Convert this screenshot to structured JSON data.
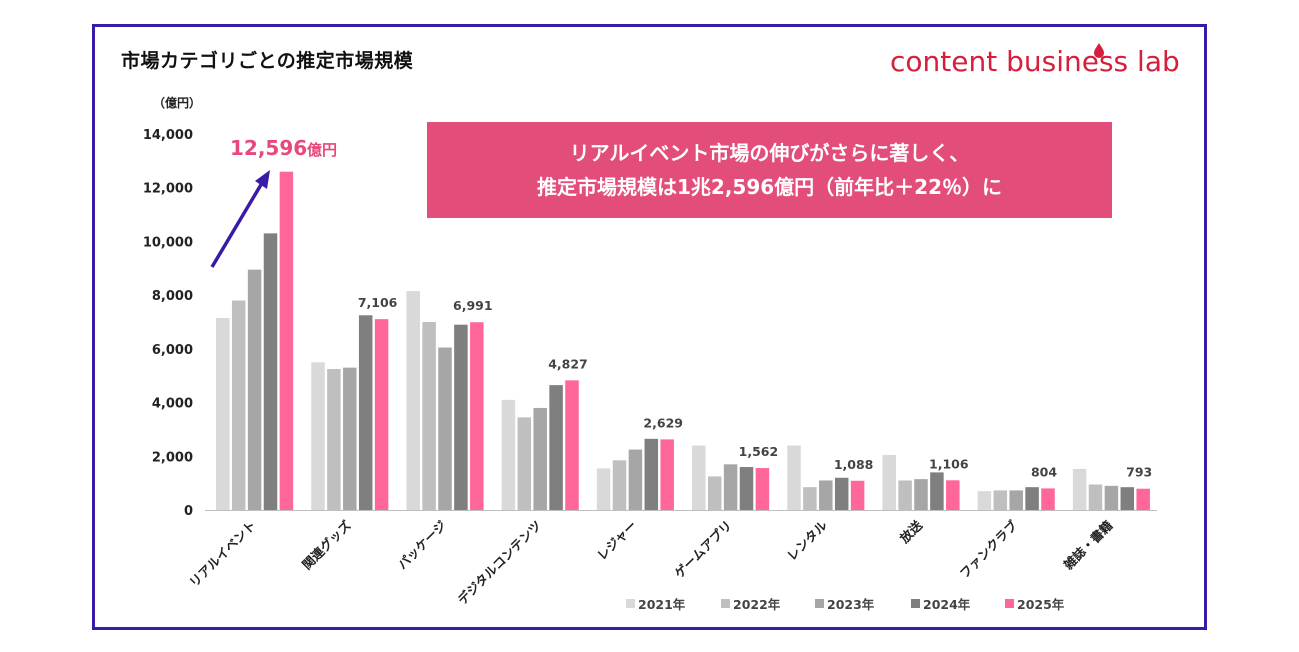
{
  "page": {
    "title": "市場カテゴリごとの推定市場規模",
    "logo_text": "content business lab",
    "callout_line1": "リアルイベント市場の伸びがさらに著しく、",
    "callout_line2": "推定市場規模は1兆2,596億円（前年比＋22％）に",
    "highlight_value": "12,596",
    "highlight_unit": "億円"
  },
  "colors": {
    "frame": "#3a1aa8",
    "accent": "#e8487a",
    "callout_bg": "#e34d79",
    "arrow": "#3a1aa8",
    "series": [
      "#d9d9d9",
      "#bfbfbf",
      "#a6a6a6",
      "#7f7f7f",
      "#ff6699"
    ]
  },
  "chart_data": {
    "type": "bar",
    "title": "市場カテゴリごとの推定市場規模",
    "ylabel": "（億円）",
    "xlabel": "",
    "ylim": [
      0,
      14000
    ],
    "yticks": [
      0,
      2000,
      4000,
      6000,
      8000,
      10000,
      12000,
      14000
    ],
    "ytick_labels": [
      "0",
      "2,000",
      "4,000",
      "6,000",
      "8,000",
      "10,000",
      "12,000",
      "14,000"
    ],
    "grid": false,
    "legend_position": "bottom-right",
    "categories": [
      "リアルイベント",
      "関連グッズ",
      "パッケージ",
      "デジタルコンテンツ",
      "レジャー",
      "ゲームアプリ",
      "レンタル",
      "放送",
      "ファンクラブ",
      "雑誌・書籍"
    ],
    "series": [
      {
        "name": "2021年",
        "values": [
          7150,
          5500,
          8150,
          4100,
          1550,
          2400,
          2400,
          2050,
          700,
          1530
        ]
      },
      {
        "name": "2022年",
        "values": [
          7800,
          5250,
          7000,
          3450,
          1850,
          1250,
          850,
          1100,
          730,
          950
        ]
      },
      {
        "name": "2023年",
        "values": [
          8950,
          5300,
          6050,
          3800,
          2250,
          1700,
          1100,
          1150,
          730,
          900
        ]
      },
      {
        "name": "2024年",
        "values": [
          10300,
          7250,
          6900,
          4650,
          2650,
          1600,
          1200,
          1400,
          850,
          850
        ]
      },
      {
        "name": "2025年",
        "values": [
          12596,
          7106,
          6991,
          4827,
          2629,
          1562,
          1088,
          1106,
          804,
          793
        ]
      }
    ],
    "data_labels_2025": [
      "12,596億円",
      "7,106",
      "6,991",
      "4,827",
      "2,629",
      "1,562",
      "1,088",
      "1,106",
      "804",
      "793"
    ]
  }
}
